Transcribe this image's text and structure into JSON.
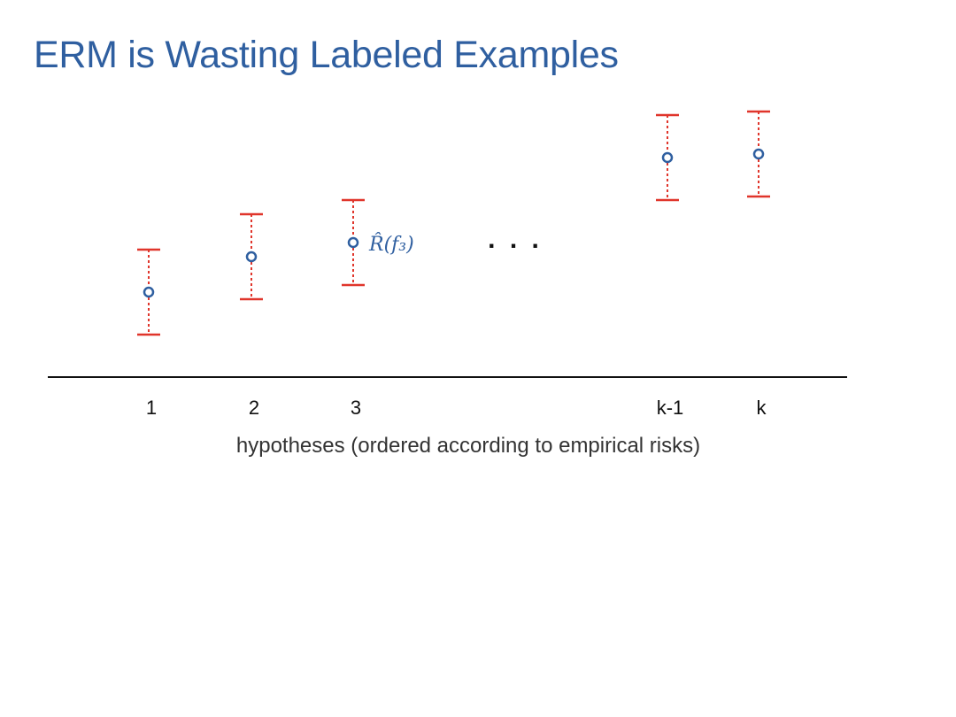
{
  "slide": {
    "title": "ERM is Wasting Labeled Examples"
  },
  "diagram": {
    "ellipsis": ". . .",
    "annotation": {
      "text": "R̂(f₃)",
      "for_hypothesis": "3"
    },
    "x_caption": "hypotheses (ordered according to empirical risks)",
    "hypotheses": [
      {
        "label": "1",
        "risk": 0.24,
        "lower": 0.12,
        "upper": 0.36
      },
      {
        "label": "2",
        "risk": 0.34,
        "lower": 0.22,
        "upper": 0.46
      },
      {
        "label": "3",
        "risk": 0.38,
        "lower": 0.26,
        "upper": 0.5
      },
      {
        "label": "k-1",
        "risk": 0.62,
        "lower": 0.5,
        "upper": 0.74
      },
      {
        "label": "k",
        "risk": 0.63,
        "lower": 0.51,
        "upper": 0.75
      }
    ],
    "colors": {
      "point": "#2f5fa0",
      "interval": "#e0352b",
      "axis": "#111111",
      "title": "#2f5fa0"
    }
  }
}
